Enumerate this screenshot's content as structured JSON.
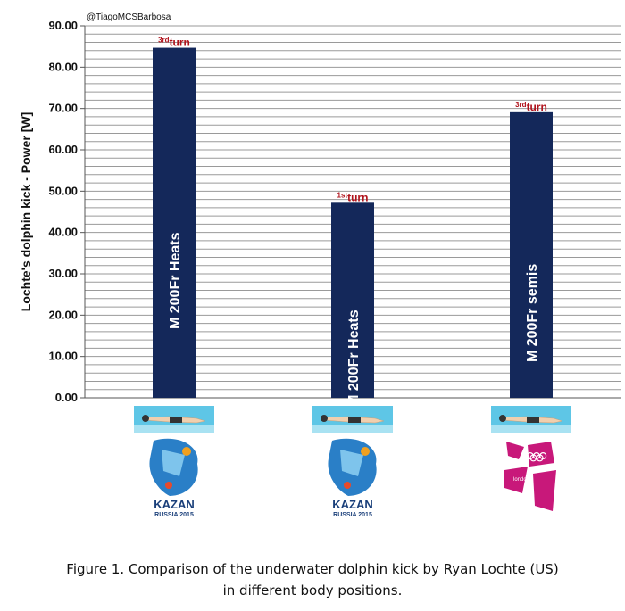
{
  "credit": "@TiagoMCSBarbosa",
  "caption": {
    "line1": "Figure 1. Comparison of the underwater dolphin kick by Ryan Lochte (US)",
    "line2": "in different body positions."
  },
  "chart_data": {
    "type": "bar",
    "ylabel": "Lochte's dolphin kick - Power [W]",
    "ylim": [
      0,
      90
    ],
    "ytick_step": 10,
    "ytick_labels": [
      "0.00",
      "10.00",
      "20.00",
      "30.00",
      "40.00",
      "50.00",
      "60.00",
      "70.00",
      "80.00",
      "90.00"
    ],
    "gridline_step": 2,
    "grid": true,
    "bar_color": "#14285a",
    "annotation_color": "#b0121b",
    "categories": [
      "M 200Fr Heats",
      "M 200Fr Heats",
      "M 200Fr semis"
    ],
    "values": [
      84.7,
      47.2,
      69.1
    ],
    "annotations": [
      {
        "sup": "3rd",
        "text": "turn"
      },
      {
        "sup": "1st",
        "text": "turn"
      },
      {
        "sup": "3rd",
        "text": "turn"
      }
    ],
    "event_logos": [
      "kazan-2015-logo",
      "kazan-2015-logo",
      "london-2012-logo"
    ],
    "kazan_logo_text": {
      "title": "KAZAN",
      "subtitle": "RUSSIA 2015"
    },
    "london_logo_text": "london"
  }
}
